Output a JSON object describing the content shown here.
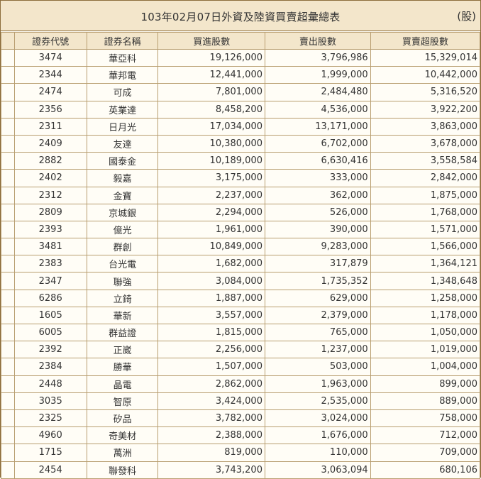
{
  "title": "103年02月07日外資及陸資買賣超彙總表",
  "unit": "(股)",
  "columns": [
    "證券代號",
    "證券名稱",
    "買進股數",
    "賣出股數",
    "買賣超股數"
  ],
  "rows": [
    [
      "3474",
      "華亞科",
      "19,126,000",
      "3,796,986",
      "15,329,014"
    ],
    [
      "2344",
      "華邦電",
      "12,441,000",
      "1,999,000",
      "10,442,000"
    ],
    [
      "2474",
      "可成",
      "7,801,000",
      "2,484,480",
      "5,316,520"
    ],
    [
      "2356",
      "英業達",
      "8,458,200",
      "4,536,000",
      "3,922,200"
    ],
    [
      "2311",
      "日月光",
      "17,034,000",
      "13,171,000",
      "3,863,000"
    ],
    [
      "2409",
      "友達",
      "10,380,000",
      "6,702,000",
      "3,678,000"
    ],
    [
      "2882",
      "國泰金",
      "10,189,000",
      "6,630,416",
      "3,558,584"
    ],
    [
      "2402",
      "毅嘉",
      "3,175,000",
      "333,000",
      "2,842,000"
    ],
    [
      "2312",
      "金寶",
      "2,237,000",
      "362,000",
      "1,875,000"
    ],
    [
      "2809",
      "京城銀",
      "2,294,000",
      "526,000",
      "1,768,000"
    ],
    [
      "2393",
      "億光",
      "1,961,000",
      "390,000",
      "1,571,000"
    ],
    [
      "3481",
      "群創",
      "10,849,000",
      "9,283,000",
      "1,566,000"
    ],
    [
      "2383",
      "台光電",
      "1,682,000",
      "317,879",
      "1,364,121"
    ],
    [
      "2347",
      "聯強",
      "3,084,000",
      "1,735,352",
      "1,348,648"
    ],
    [
      "6286",
      "立錡",
      "1,887,000",
      "629,000",
      "1,258,000"
    ],
    [
      "1605",
      "華新",
      "3,557,000",
      "2,379,000",
      "1,178,000"
    ],
    [
      "6005",
      "群益證",
      "1,815,000",
      "765,000",
      "1,050,000"
    ],
    [
      "2392",
      "正崴",
      "2,256,000",
      "1,237,000",
      "1,019,000"
    ],
    [
      "2384",
      "勝華",
      "1,507,000",
      "503,000",
      "1,004,000"
    ],
    [
      "2448",
      "晶電",
      "2,862,000",
      "1,963,000",
      "899,000"
    ],
    [
      "3035",
      "智原",
      "3,424,000",
      "2,535,000",
      "889,000"
    ],
    [
      "2325",
      "矽品",
      "3,782,000",
      "3,024,000",
      "758,000"
    ],
    [
      "4960",
      "奇美材",
      "2,388,000",
      "1,676,000",
      "712,000"
    ],
    [
      "1715",
      "萬洲",
      "819,000",
      "110,000",
      "709,000"
    ],
    [
      "2454",
      "聯發科",
      "3,743,200",
      "3,063,094",
      "680,106"
    ]
  ]
}
